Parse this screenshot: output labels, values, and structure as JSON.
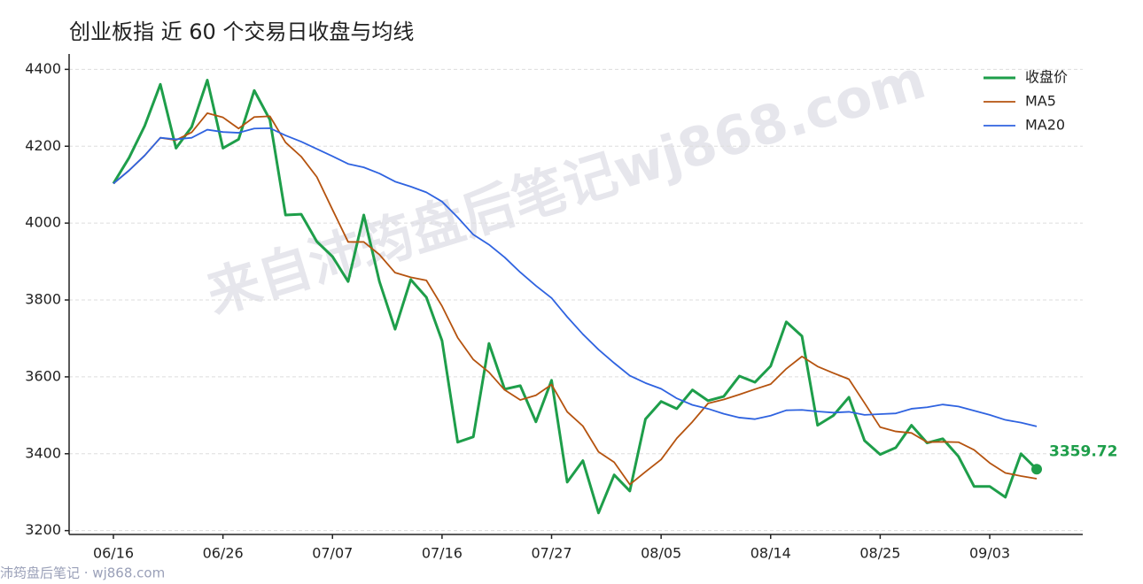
{
  "chart_data": {
    "type": "line",
    "title": "创业板指 近 60 个交易日收盘与均线",
    "watermark": "来自沛筠盘后笔记wj868.com",
    "footer": "沛筠盘后笔记 · wj868.com",
    "categories": [
      "06/16",
      null,
      null,
      null,
      null,
      null,
      null,
      "06/26",
      null,
      null,
      null,
      null,
      null,
      null,
      "07/07",
      null,
      null,
      null,
      null,
      null,
      null,
      "07/16",
      null,
      null,
      null,
      null,
      null,
      null,
      "07/27",
      null,
      null,
      null,
      null,
      null,
      null,
      "08/05",
      null,
      null,
      null,
      null,
      null,
      null,
      "08/14",
      null,
      null,
      null,
      null,
      null,
      null,
      "08/25",
      null,
      null,
      null,
      null,
      null,
      null,
      "09/03",
      null,
      null,
      null
    ],
    "series": [
      {
        "name": "收盘价",
        "color": "#1e9e4a",
        "values": [
          4103,
          4170,
          4253,
          4361,
          4195,
          4250,
          4372,
          4195,
          4218,
          4345,
          4269,
          4021,
          4023,
          3952,
          3913,
          3848,
          4021,
          3848,
          3724,
          3853,
          3807,
          3694,
          3430,
          3444,
          3687,
          3568,
          3577,
          3483,
          3591,
          3326,
          3382,
          3246,
          3345,
          3303,
          3490,
          3536,
          3517,
          3566,
          3538,
          3549,
          3602,
          3586,
          3628,
          3743,
          3706,
          3474,
          3499,
          3547,
          3434,
          3398,
          3416,
          3474,
          3428,
          3439,
          3393,
          3315,
          3315,
          3287,
          3400,
          3359.72
        ]
      },
      {
        "name": "MA5",
        "color": "#b5530f",
        "values": [
          4103,
          4137,
          4176,
          4222,
          4216,
          4236,
          4286,
          4275,
          4246,
          4276,
          4278,
          4210,
          4173,
          4120,
          4035,
          3951,
          3951,
          3918,
          3871,
          3859,
          3851,
          3784,
          3702,
          3645,
          3612,
          3566,
          3540,
          3552,
          3580,
          3509,
          3472,
          3405,
          3378,
          3320,
          3353,
          3385,
          3440,
          3483,
          3531,
          3541,
          3554,
          3568,
          3581,
          3621,
          3653,
          3627,
          3610,
          3594,
          3532,
          3469,
          3458,
          3454,
          3430,
          3431,
          3430,
          3410,
          3376,
          3350,
          3342,
          3335
        ]
      },
      {
        "name": "MA20",
        "color": "#2f63e0",
        "values": [
          4103,
          4137,
          4176,
          4222,
          4218,
          4222,
          4243,
          4237,
          4235,
          4246,
          4247,
          4228,
          4212,
          4193,
          4174,
          4154,
          4145,
          4129,
          4108,
          4095,
          4080,
          4056,
          4015,
          3970,
          3944,
          3911,
          3872,
          3837,
          3805,
          3756,
          3711,
          3671,
          3636,
          3603,
          3584,
          3569,
          3544,
          3527,
          3517,
          3504,
          3494,
          3490,
          3499,
          3513,
          3514,
          3510,
          3507,
          3509,
          3501,
          3503,
          3505,
          3517,
          3521,
          3528,
          3523,
          3512,
          3501,
          3488,
          3481,
          3471
        ]
      }
    ],
    "ylim": [
      3190,
      4440
    ],
    "yticks": [
      3200,
      3400,
      3600,
      3800,
      4000,
      4200,
      4400
    ],
    "grid": true,
    "legend": "upper right"
  }
}
